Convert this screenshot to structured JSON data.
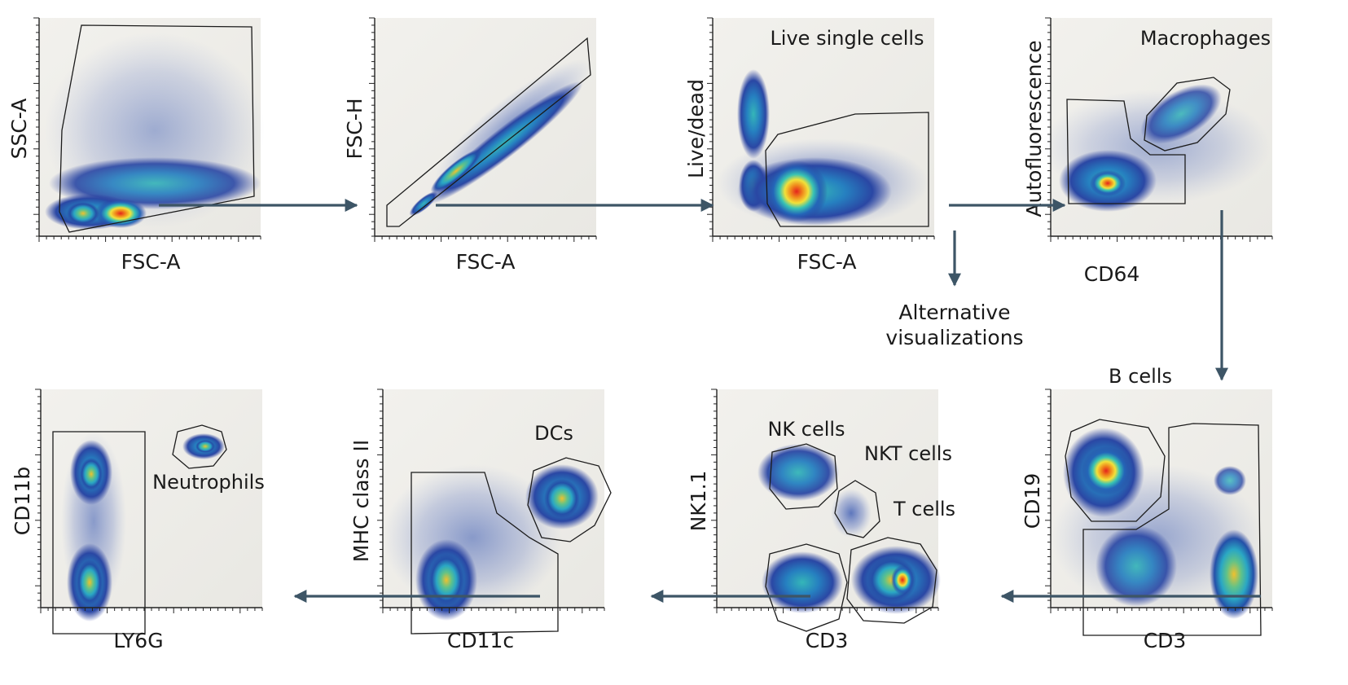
{
  "panels": [
    {
      "id": "p1",
      "x_axis": "FSC-A",
      "y_axis": "SSC-A",
      "gate_labels": []
    },
    {
      "id": "p2",
      "x_axis": "FSC-A",
      "y_axis": "FSC-H",
      "gate_labels": []
    },
    {
      "id": "p3",
      "x_axis": "FSC-A",
      "y_axis": "Live/dead",
      "gate_labels": [
        "Live single cells"
      ]
    },
    {
      "id": "p4",
      "x_axis": "CD64",
      "y_axis": "Autofluorescence",
      "gate_labels": [
        "Macrophages"
      ]
    },
    {
      "id": "p5",
      "x_axis": "CD3",
      "y_axis": "CD19",
      "gate_labels": [
        "B cells"
      ]
    },
    {
      "id": "p6",
      "x_axis": "CD3",
      "y_axis": "NK1.1",
      "gate_labels": [
        "NK cells",
        "NKT cells",
        "T cells"
      ]
    },
    {
      "id": "p7",
      "x_axis": "CD11c",
      "y_axis": "MHC class II",
      "gate_labels": [
        "DCs"
      ]
    },
    {
      "id": "p8",
      "x_axis": "LY6G",
      "y_axis": "CD11b",
      "gate_labels": [
        "Neutrophils"
      ]
    }
  ],
  "alt_visualizations": [
    "Alternative",
    "visualizations"
  ],
  "colors": {
    "arrow": "#3d5566",
    "density_low": "#2a3f9e",
    "density_mid": "#2fb3c9",
    "density_high": "#e4231d",
    "background": "#f1f0ec"
  }
}
